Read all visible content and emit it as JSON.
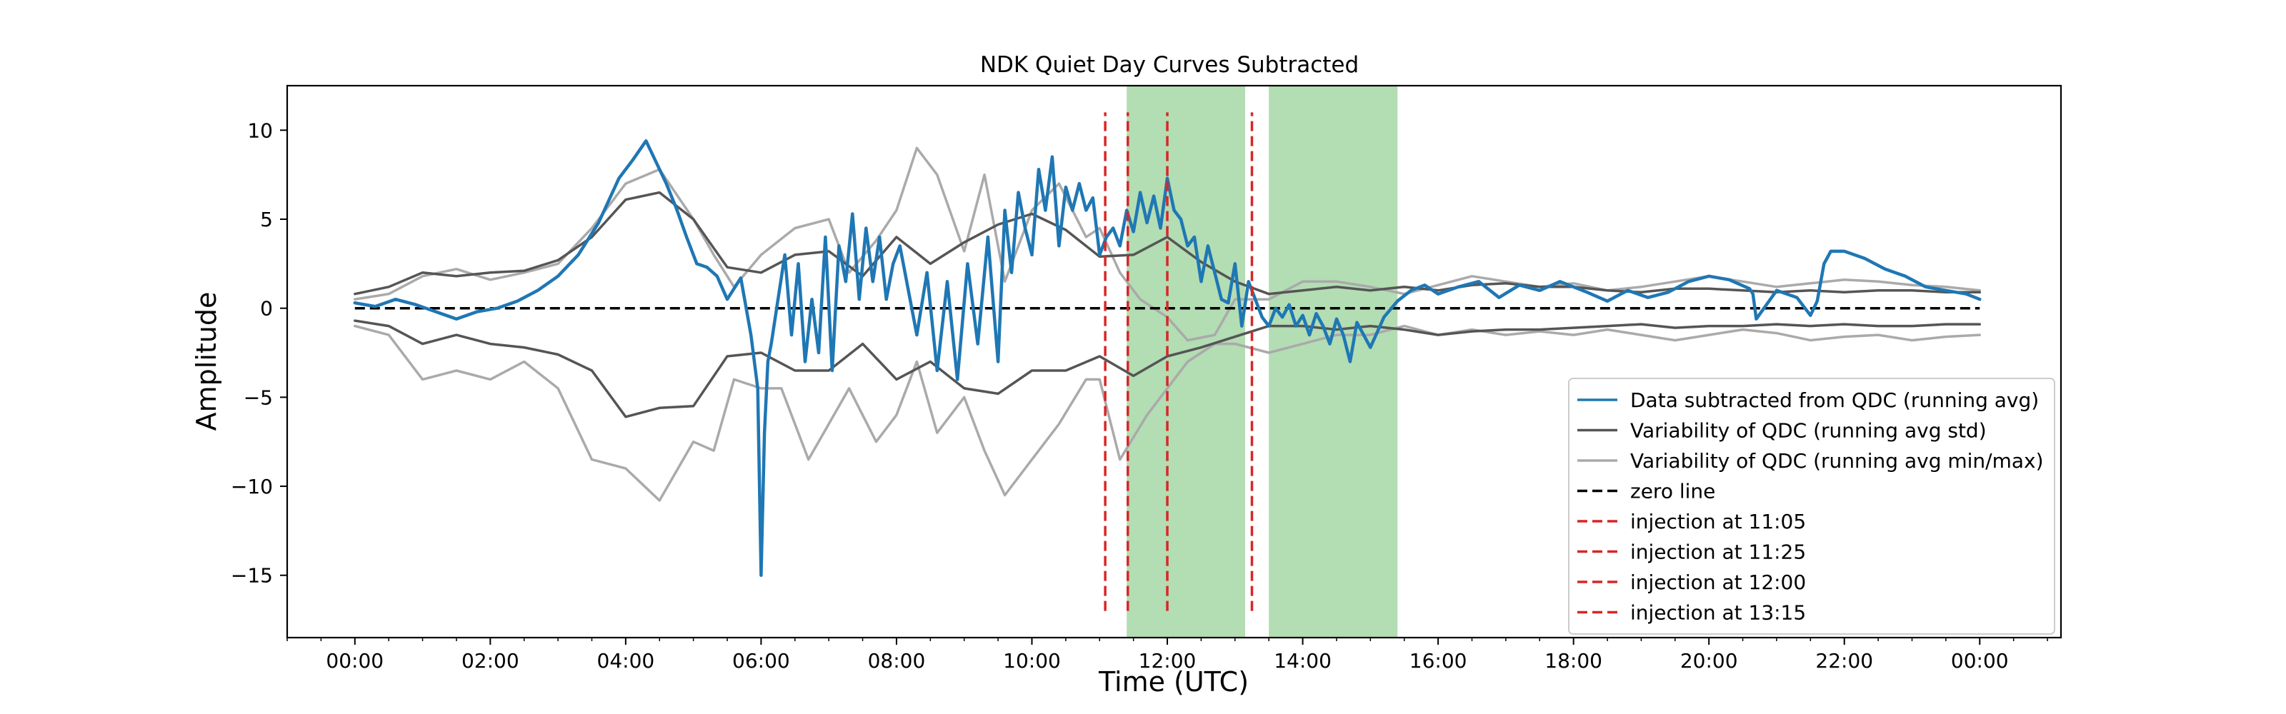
{
  "chart_data": {
    "type": "line",
    "title": "NDK Quiet Day Curves Subtracted",
    "xlabel": "Time (UTC)",
    "ylabel": "Amplitude",
    "x_unit": "hours",
    "xlim": [
      -1.0,
      25.2
    ],
    "ylim": [
      -18.5,
      12.5
    ],
    "x_ticks": [
      {
        "x": 0,
        "label": "00:00"
      },
      {
        "x": 2,
        "label": "02:00"
      },
      {
        "x": 4,
        "label": "04:00"
      },
      {
        "x": 6,
        "label": "06:00"
      },
      {
        "x": 8,
        "label": "08:00"
      },
      {
        "x": 10,
        "label": "10:00"
      },
      {
        "x": 12,
        "label": "12:00"
      },
      {
        "x": 14,
        "label": "14:00"
      },
      {
        "x": 16,
        "label": "16:00"
      },
      {
        "x": 18,
        "label": "18:00"
      },
      {
        "x": 20,
        "label": "20:00"
      },
      {
        "x": 22,
        "label": "22:00"
      },
      {
        "x": 24,
        "label": "00:00"
      }
    ],
    "x_minor_tick_step": 0.5,
    "y_ticks": [
      {
        "y": 10,
        "label": "10"
      },
      {
        "y": 5,
        "label": "5"
      },
      {
        "y": 0,
        "label": "0"
      },
      {
        "y": -5,
        "label": "−5"
      },
      {
        "y": -10,
        "label": "−10"
      },
      {
        "y": -15,
        "label": "−15"
      }
    ],
    "grid": false,
    "legend_position": "lower-right",
    "shaded_regions": [
      {
        "x0": 11.4,
        "x1": 13.15,
        "color": "#2ca02c",
        "opacity": 0.36
      },
      {
        "x0": 13.5,
        "x1": 15.4,
        "color": "#2ca02c",
        "opacity": 0.36
      }
    ],
    "series": [
      {
        "name": "Data subtracted from QDC (running avg)",
        "color": "#1f77b4",
        "width": 4.5,
        "style": "solid",
        "x": [
          0,
          0.3,
          0.6,
          0.9,
          1.2,
          1.5,
          1.8,
          2.1,
          2.4,
          2.7,
          3.0,
          3.3,
          3.6,
          3.9,
          4.1,
          4.3,
          4.45,
          4.6,
          4.75,
          4.9,
          5.05,
          5.2,
          5.35,
          5.5,
          5.7,
          5.85,
          5.95,
          6.0,
          6.05,
          6.1,
          6.15,
          6.25,
          6.35,
          6.45,
          6.55,
          6.65,
          6.75,
          6.85,
          6.95,
          7.05,
          7.15,
          7.25,
          7.35,
          7.45,
          7.55,
          7.65,
          7.75,
          7.85,
          7.95,
          8.05,
          8.15,
          8.3,
          8.45,
          8.6,
          8.75,
          8.9,
          9.05,
          9.2,
          9.35,
          9.5,
          9.6,
          9.7,
          9.8,
          9.9,
          10.0,
          10.1,
          10.2,
          10.3,
          10.4,
          10.5,
          10.6,
          10.7,
          10.8,
          10.9,
          11.0,
          11.1,
          11.2,
          11.3,
          11.4,
          11.5,
          11.6,
          11.7,
          11.8,
          11.9,
          12.0,
          12.1,
          12.2,
          12.3,
          12.4,
          12.5,
          12.6,
          12.7,
          12.8,
          12.9,
          13.0,
          13.1,
          13.2,
          13.3,
          13.4,
          13.5,
          13.6,
          13.7,
          13.8,
          13.9,
          14.0,
          14.1,
          14.2,
          14.3,
          14.4,
          14.5,
          14.6,
          14.7,
          14.8,
          14.9,
          15.0,
          15.2,
          15.4,
          15.6,
          15.8,
          16.0,
          16.3,
          16.6,
          16.9,
          17.2,
          17.5,
          17.8,
          18.0,
          18.2,
          18.5,
          18.8,
          19.1,
          19.4,
          19.7,
          20.0,
          20.3,
          20.6,
          20.65,
          20.7,
          21.0,
          21.3,
          21.5,
          21.6,
          21.7,
          21.8,
          22.0,
          22.3,
          22.6,
          22.9,
          23.2,
          23.5,
          23.8,
          24.0
        ],
        "y": [
          0.3,
          0.1,
          0.5,
          0.2,
          -0.2,
          -0.6,
          -0.2,
          0.0,
          0.4,
          1.0,
          1.8,
          3.0,
          4.8,
          7.3,
          8.3,
          9.4,
          8.2,
          7.0,
          5.6,
          4.0,
          2.5,
          2.3,
          1.8,
          0.5,
          1.7,
          -1.5,
          -4.5,
          -15.0,
          -7.0,
          -3.0,
          -2.0,
          0.5,
          3.0,
          -1.5,
          2.5,
          -3.0,
          0.5,
          -2.5,
          4.0,
          -3.5,
          3.5,
          1.5,
          5.3,
          0.5,
          4.5,
          1.5,
          4.0,
          0.5,
          2.5,
          3.5,
          1.5,
          -1.5,
          2.0,
          -3.5,
          1.5,
          -4.0,
          2.5,
          -2.0,
          4.0,
          -3.0,
          5.5,
          2.0,
          6.5,
          4.5,
          3.0,
          7.8,
          5.5,
          8.5,
          3.5,
          6.8,
          5.5,
          7.0,
          5.5,
          6.2,
          3.0,
          4.0,
          4.5,
          3.5,
          5.5,
          4.3,
          6.5,
          4.8,
          6.3,
          4.5,
          7.3,
          5.5,
          5.0,
          3.5,
          4.0,
          1.5,
          3.5,
          2.0,
          0.5,
          0.3,
          2.5,
          -1.0,
          1.5,
          0.5,
          -0.5,
          -1.0,
          0.0,
          -0.5,
          0.2,
          -1.0,
          -0.4,
          -1.5,
          -0.3,
          -1.0,
          -2.0,
          -0.6,
          -1.5,
          -3.0,
          -0.8,
          -1.5,
          -2.2,
          -0.5,
          0.4,
          1.0,
          1.3,
          0.8,
          1.2,
          1.5,
          0.6,
          1.3,
          1.0,
          1.5,
          1.2,
          0.9,
          0.4,
          1.0,
          0.6,
          0.9,
          1.5,
          1.8,
          1.6,
          1.1,
          0.8,
          -0.6,
          1.0,
          0.6,
          -0.4,
          0.4,
          2.5,
          3.2,
          3.2,
          2.8,
          2.2,
          1.8,
          1.2,
          1.0,
          0.8,
          0.5
        ]
      },
      {
        "name": "Variability of QDC (running avg std)",
        "color": "#555555",
        "width": 3.5,
        "style": "solid",
        "x": [
          0,
          0.5,
          1.0,
          1.5,
          2.0,
          2.5,
          3.0,
          3.5,
          4.0,
          4.5,
          5.0,
          5.5,
          6.0,
          6.5,
          7.0,
          7.5,
          8.0,
          8.5,
          9.0,
          9.5,
          10.0,
          10.5,
          11.0,
          11.5,
          12.0,
          12.5,
          13.0,
          13.5,
          14.0,
          14.5,
          15.0,
          15.5,
          16.0,
          16.5,
          17.0,
          17.5,
          18.0,
          18.5,
          19.0,
          19.5,
          20.0,
          20.5,
          21.0,
          21.5,
          22.0,
          22.5,
          23.0,
          23.5,
          24.0
        ],
        "y": [
          0.8,
          1.2,
          2.0,
          1.8,
          2.0,
          2.1,
          2.7,
          4.0,
          6.1,
          6.5,
          5.0,
          2.3,
          2.0,
          3.0,
          3.2,
          1.8,
          4.0,
          2.5,
          3.7,
          4.7,
          5.3,
          4.4,
          2.9,
          3.0,
          4.0,
          2.6,
          1.5,
          0.8,
          1.0,
          1.2,
          1.0,
          1.2,
          1.0,
          1.3,
          1.4,
          1.2,
          1.2,
          1.0,
          0.9,
          1.1,
          1.1,
          1.0,
          0.9,
          1.0,
          0.9,
          1.0,
          1.0,
          0.9,
          0.9
        ]
      },
      {
        "name": "",
        "color": "#555555",
        "width": 3.5,
        "style": "solid",
        "x": [
          0,
          0.5,
          1.0,
          1.5,
          2.0,
          2.5,
          3.0,
          3.5,
          4.0,
          4.5,
          5.0,
          5.5,
          6.0,
          6.5,
          7.0,
          7.5,
          8.0,
          8.5,
          9.0,
          9.5,
          10.0,
          10.5,
          11.0,
          11.5,
          12.0,
          12.5,
          13.0,
          13.5,
          14.0,
          14.5,
          15.0,
          15.5,
          16.0,
          16.5,
          17.0,
          17.5,
          18.0,
          18.5,
          19.0,
          19.5,
          20.0,
          20.5,
          21.0,
          21.5,
          22.0,
          22.5,
          23.0,
          23.5,
          24.0
        ],
        "y": [
          -0.7,
          -1.0,
          -2.0,
          -1.5,
          -2.0,
          -2.2,
          -2.6,
          -3.5,
          -6.1,
          -5.6,
          -5.5,
          -2.7,
          -2.5,
          -3.5,
          -3.5,
          -2.0,
          -4.0,
          -3.0,
          -4.5,
          -4.8,
          -3.5,
          -3.5,
          -2.7,
          -3.8,
          -2.7,
          -2.2,
          -1.6,
          -1.0,
          -1.0,
          -1.2,
          -1.0,
          -1.2,
          -1.5,
          -1.3,
          -1.2,
          -1.2,
          -1.1,
          -1.0,
          -0.9,
          -1.1,
          -1.0,
          -1.0,
          -0.9,
          -1.0,
          -0.9,
          -1.0,
          -1.0,
          -0.9,
          -0.9
        ]
      },
      {
        "name": "Variability of QDC (running avg min/max)",
        "color": "#aaaaaa",
        "width": 3.5,
        "style": "solid",
        "x": [
          0,
          0.5,
          1.0,
          1.5,
          2.0,
          2.5,
          3.0,
          3.5,
          4.0,
          4.5,
          5.0,
          5.3,
          5.6,
          6.0,
          6.5,
          7.0,
          7.3,
          7.7,
          8.0,
          8.3,
          8.6,
          9.0,
          9.3,
          9.6,
          10.0,
          10.4,
          10.8,
          11.0,
          11.3,
          11.6,
          12.0,
          12.3,
          12.7,
          13.0,
          13.5,
          14.0,
          14.5,
          15.0,
          15.5,
          16.0,
          16.5,
          17.0,
          17.5,
          18.0,
          18.5,
          19.0,
          19.5,
          20.0,
          20.5,
          21.0,
          21.5,
          22.0,
          22.5,
          23.0,
          23.5,
          24.0
        ],
        "y": [
          0.5,
          0.8,
          1.8,
          2.2,
          1.6,
          2.0,
          2.5,
          4.5,
          7.0,
          7.8,
          5.0,
          3.0,
          1.2,
          3.0,
          4.5,
          5.0,
          2.0,
          3.8,
          5.5,
          9.0,
          7.5,
          3.2,
          7.5,
          1.5,
          5.5,
          7.0,
          4.0,
          4.5,
          2.0,
          0.5,
          -0.5,
          -1.8,
          -1.5,
          0.5,
          0.5,
          1.5,
          1.5,
          1.2,
          0.8,
          1.3,
          1.8,
          1.5,
          1.2,
          1.4,
          1.0,
          1.2,
          1.5,
          1.8,
          1.5,
          1.2,
          1.4,
          1.6,
          1.5,
          1.3,
          1.2,
          1.0
        ]
      },
      {
        "name": "",
        "color": "#aaaaaa",
        "width": 3.5,
        "style": "solid",
        "x": [
          0,
          0.5,
          1.0,
          1.5,
          2.0,
          2.5,
          3.0,
          3.5,
          4.0,
          4.5,
          5.0,
          5.3,
          5.6,
          6.0,
          6.3,
          6.7,
          7.0,
          7.3,
          7.7,
          8.0,
          8.3,
          8.6,
          9.0,
          9.3,
          9.6,
          10.0,
          10.4,
          10.8,
          11.0,
          11.3,
          11.7,
          12.0,
          12.3,
          12.7,
          13.0,
          13.5,
          14.0,
          14.5,
          15.0,
          15.5,
          16.0,
          16.5,
          17.0,
          17.5,
          18.0,
          18.5,
          19.0,
          19.5,
          20.0,
          20.5,
          21.0,
          21.5,
          22.0,
          22.5,
          23.0,
          23.5,
          24.0
        ],
        "y": [
          -1.0,
          -1.5,
          -4.0,
          -3.5,
          -4.0,
          -3.0,
          -4.5,
          -8.5,
          -9.0,
          -10.8,
          -7.5,
          -8.0,
          -4.0,
          -4.5,
          -4.5,
          -8.5,
          -6.5,
          -4.5,
          -7.5,
          -6.0,
          -3.0,
          -7.0,
          -5.0,
          -8.0,
          -10.5,
          -8.5,
          -6.5,
          -4.0,
          -4.0,
          -8.5,
          -6.0,
          -4.5,
          -3.0,
          -2.0,
          -2.0,
          -2.5,
          -2.0,
          -1.5,
          -1.5,
          -1.0,
          -1.5,
          -1.2,
          -1.5,
          -1.3,
          -1.5,
          -1.2,
          -1.5,
          -1.8,
          -1.5,
          -1.2,
          -1.4,
          -1.8,
          -1.6,
          -1.5,
          -1.8,
          -1.6,
          -1.5
        ]
      },
      {
        "name": "zero line",
        "color": "#000000",
        "width": 3.5,
        "style": "dashed",
        "x": [
          0,
          24
        ],
        "y": [
          0,
          0
        ]
      }
    ],
    "vlines": [
      {
        "name": "injection at 11:05",
        "x": 11.083,
        "y0": -17,
        "y1": 11,
        "color": "#d62728"
      },
      {
        "name": "injection at 11:25",
        "x": 11.417,
        "y0": -17,
        "y1": 11,
        "color": "#d62728"
      },
      {
        "name": "injection at 12:00",
        "x": 12.0,
        "y0": -17,
        "y1": 11,
        "color": "#d62728"
      },
      {
        "name": "injection at 13:15",
        "x": 13.25,
        "y0": -17,
        "y1": 11,
        "color": "#d62728"
      }
    ],
    "legend": [
      {
        "label": "Data subtracted from QDC (running avg)",
        "color": "#1f77b4",
        "style": "solid"
      },
      {
        "label": "Variability of QDC (running avg std)",
        "color": "#555555",
        "style": "solid"
      },
      {
        "label": "Variability of QDC (running avg min/max)",
        "color": "#aaaaaa",
        "style": "solid"
      },
      {
        "label": "zero line",
        "color": "#000000",
        "style": "dashed"
      },
      {
        "label": "injection at 11:05",
        "color": "#d62728",
        "style": "dashed"
      },
      {
        "label": "injection at 11:25",
        "color": "#d62728",
        "style": "dashed"
      },
      {
        "label": "injection at 12:00",
        "color": "#d62728",
        "style": "dashed"
      },
      {
        "label": "injection at 13:15",
        "color": "#d62728",
        "style": "dashed"
      }
    ]
  }
}
